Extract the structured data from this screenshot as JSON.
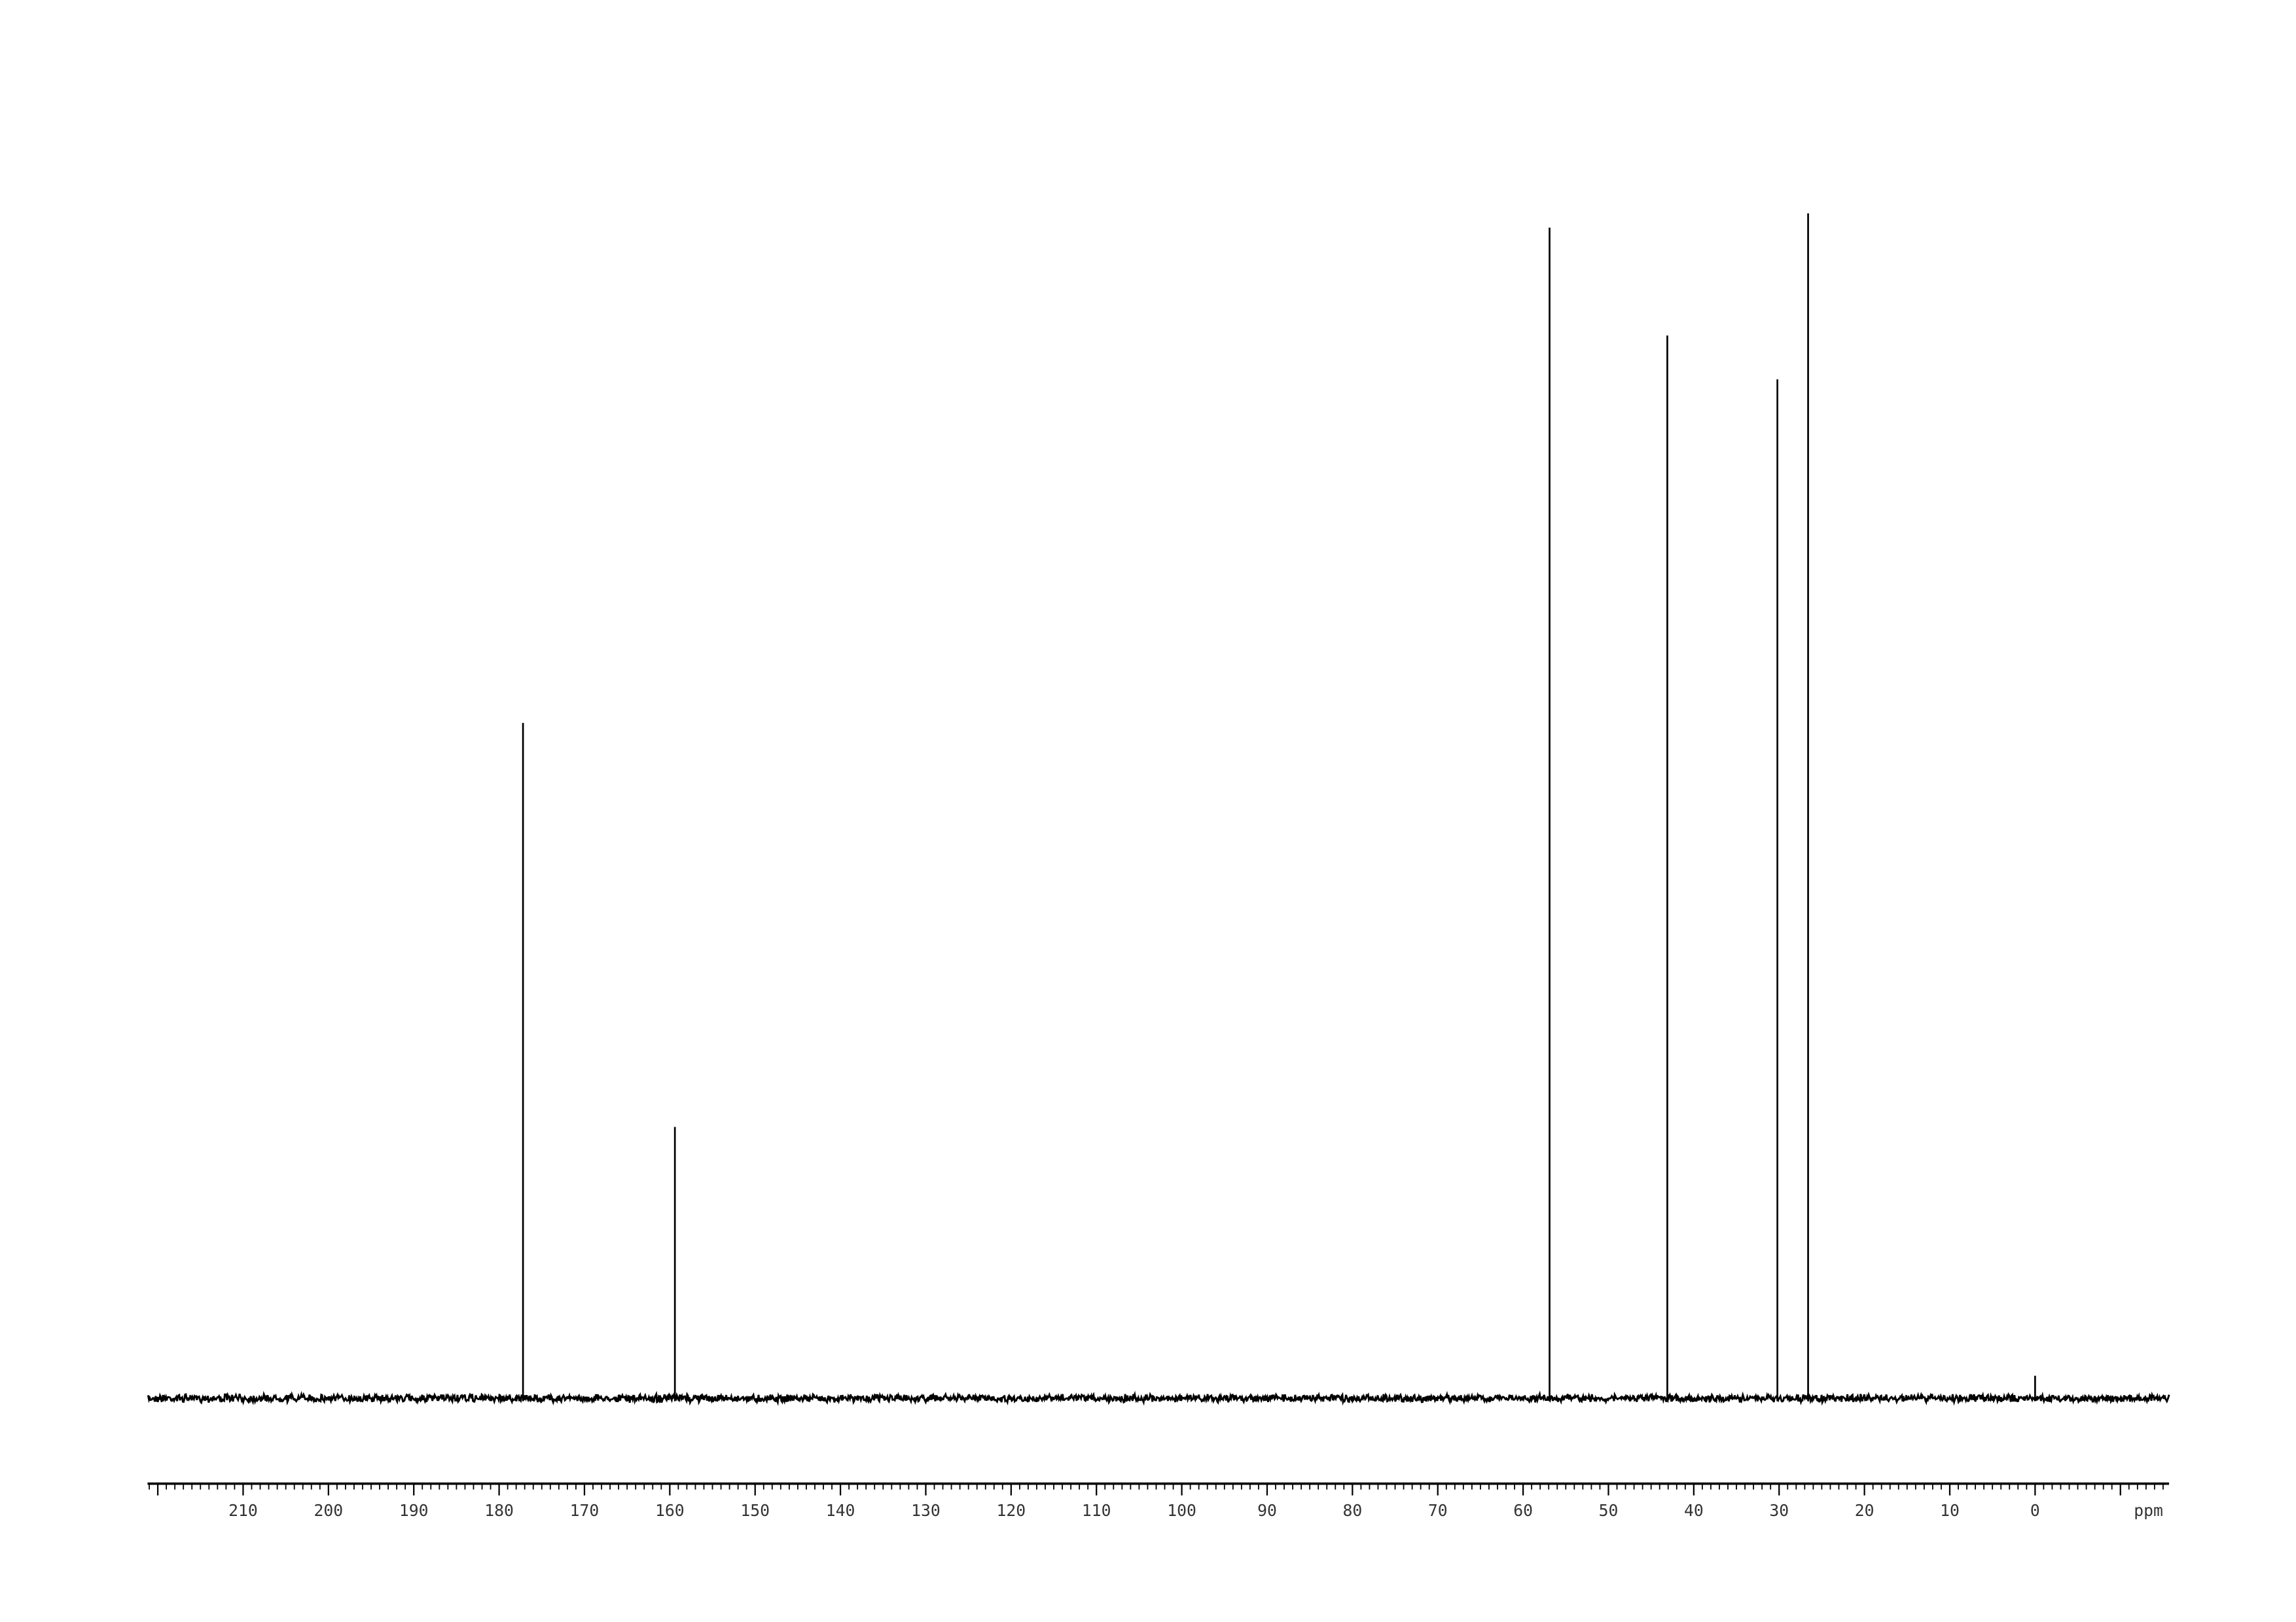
{
  "chart_data": {
    "type": "line",
    "title": "",
    "xlabel": "ppm",
    "ylabel": "",
    "xlim": [
      221.2,
      -15.7
    ],
    "x_reversed": true,
    "grid": false,
    "legend": "none",
    "x_ticks": [
      210,
      200,
      190,
      180,
      170,
      160,
      150,
      140,
      130,
      120,
      110,
      100,
      90,
      80,
      70,
      60,
      50,
      40,
      30,
      20,
      10,
      0
    ],
    "x_tick_labels": [
      "210",
      "200",
      "190",
      "180",
      "170",
      "160",
      "150",
      "140",
      "130",
      "120",
      "110",
      "100",
      "90",
      "80",
      "70",
      "60",
      "50",
      "40",
      "30",
      "20",
      "10",
      "0"
    ],
    "minor_tick_step": 1,
    "peaks": [
      {
        "ppm": 177.2,
        "intensity": 57.0
      },
      {
        "ppm": 159.4,
        "intensity": 22.9
      },
      {
        "ppm": 56.9,
        "intensity": 98.8
      },
      {
        "ppm": 43.1,
        "intensity": 89.7
      },
      {
        "ppm": 30.2,
        "intensity": 86.0
      },
      {
        "ppm": 26.6,
        "intensity": 100.0
      },
      {
        "ppm": 0.0,
        "intensity": 1.9
      }
    ],
    "line_color": "#000000"
  }
}
